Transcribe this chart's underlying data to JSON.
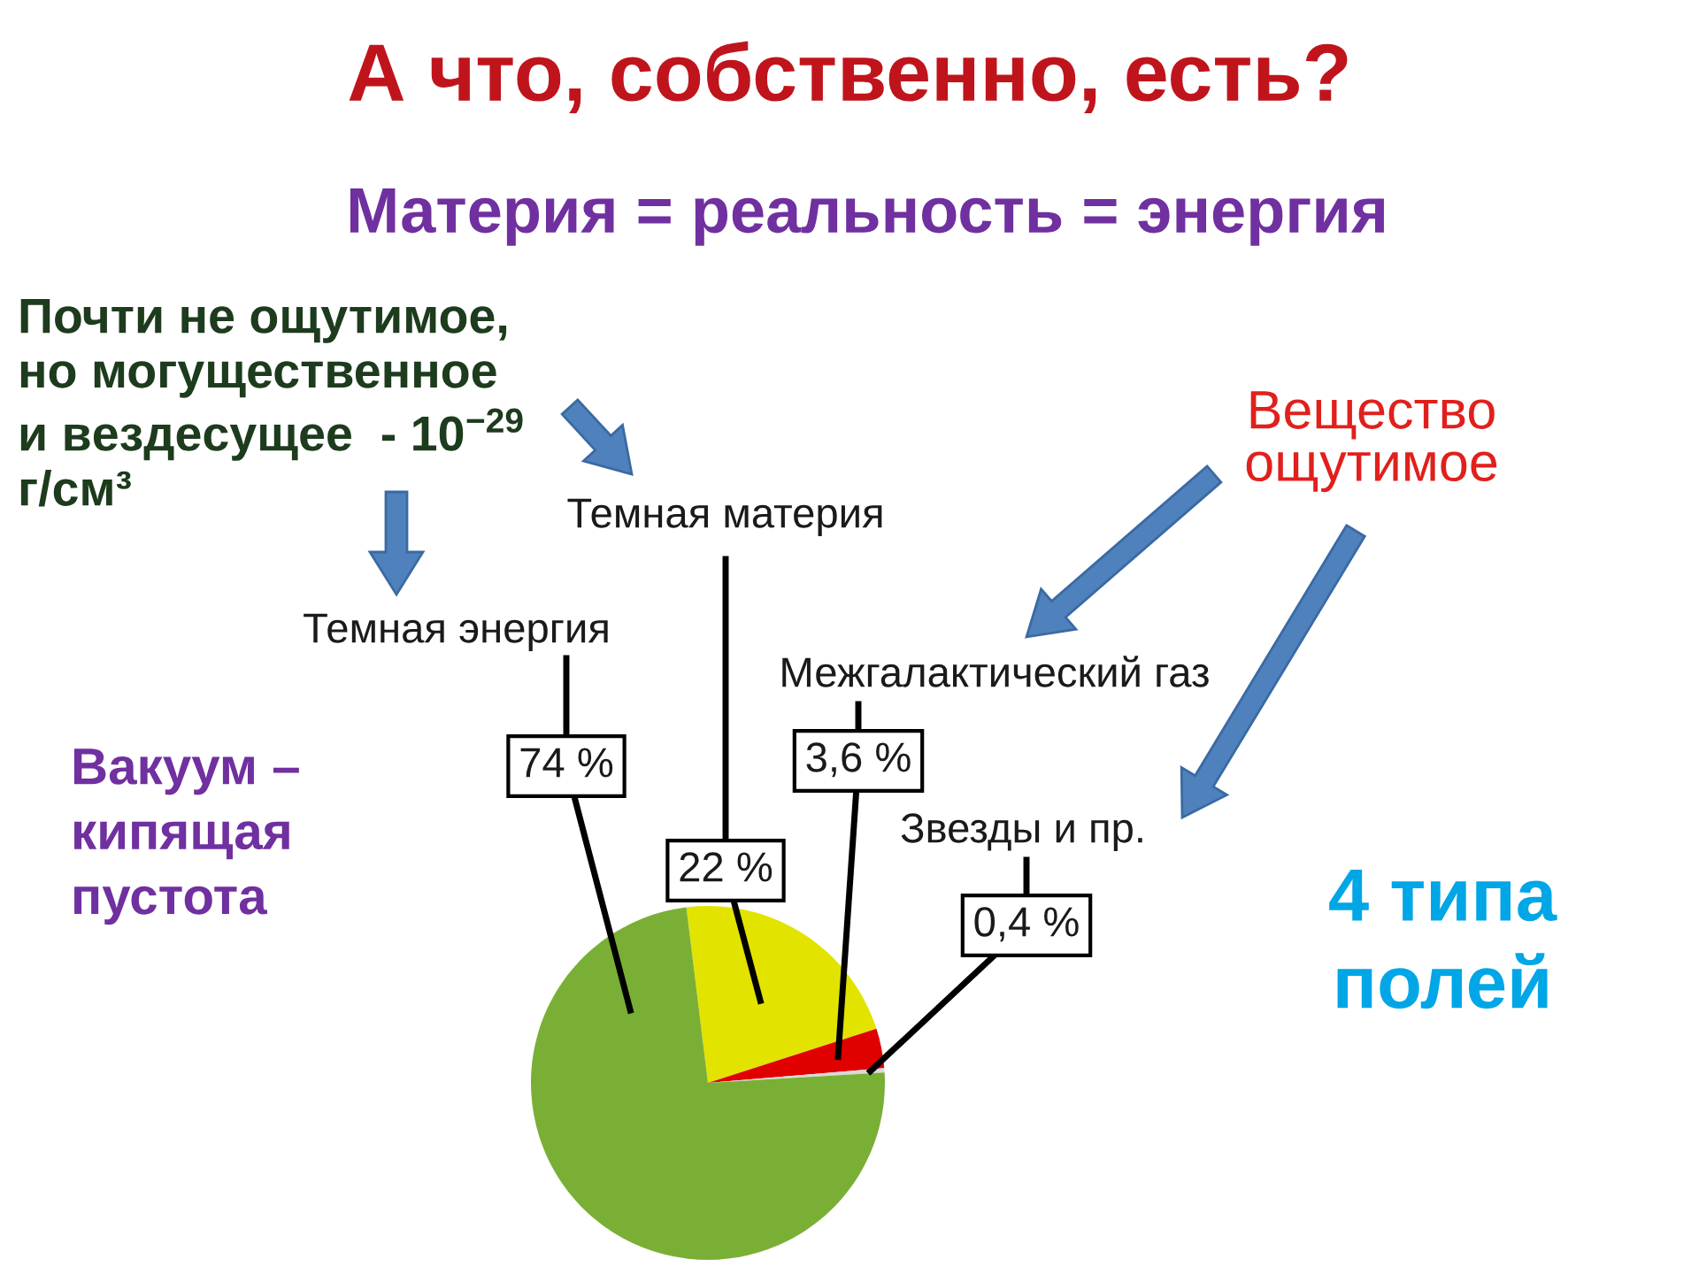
{
  "chart_data": {
    "type": "pie",
    "title": "А что, собственно, есть?",
    "subtitle": "Материя = реальность = энергия",
    "categories": [
      "Темная материя",
      "Межгалактический газ",
      "Звезды и пр.",
      "Темная энергия"
    ],
    "values": [
      22,
      3.6,
      0.4,
      74
    ],
    "colors": [
      "#e3e300",
      "#e00000",
      "#d9d9d9",
      "#7aaf35"
    ],
    "value_labels": [
      "22 %",
      "3,6 %",
      "0,4 %",
      "74 %"
    ],
    "annotations": [
      "Почти не ощутимое,\nно могущественное\nи вездесущее  - 10$^{−29}$\nг/см³",
      "Вещество\nощутимое",
      "Вакуум –\nкипящая\nпустота",
      "4 типа\nполей"
    ]
  }
}
